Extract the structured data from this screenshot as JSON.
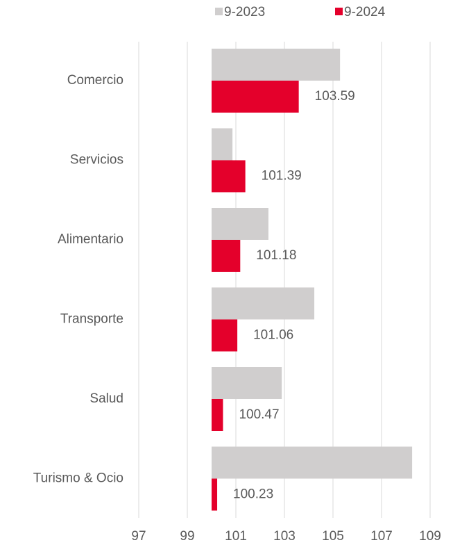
{
  "chart_data": {
    "type": "bar",
    "orientation": "horizontal",
    "categories": [
      "Comercio",
      "Servicios",
      "Alimentario",
      "Transporte",
      "Salud",
      "Turismo & Ocio"
    ],
    "series": [
      {
        "name": "9-2023",
        "color": "#d0cece",
        "values": [
          105.29,
          100.86,
          102.34,
          104.23,
          102.89,
          108.26
        ]
      },
      {
        "name": "9-2024",
        "color": "#e4002b",
        "values": [
          103.59,
          101.39,
          101.18,
          101.06,
          100.47,
          100.23
        ]
      }
    ],
    "data_labels_series": 1,
    "baseline": 100,
    "xlim": [
      97,
      109
    ],
    "xticks": [
      97,
      99,
      101,
      103,
      105,
      107,
      109
    ],
    "grid": true,
    "legend": "top"
  }
}
